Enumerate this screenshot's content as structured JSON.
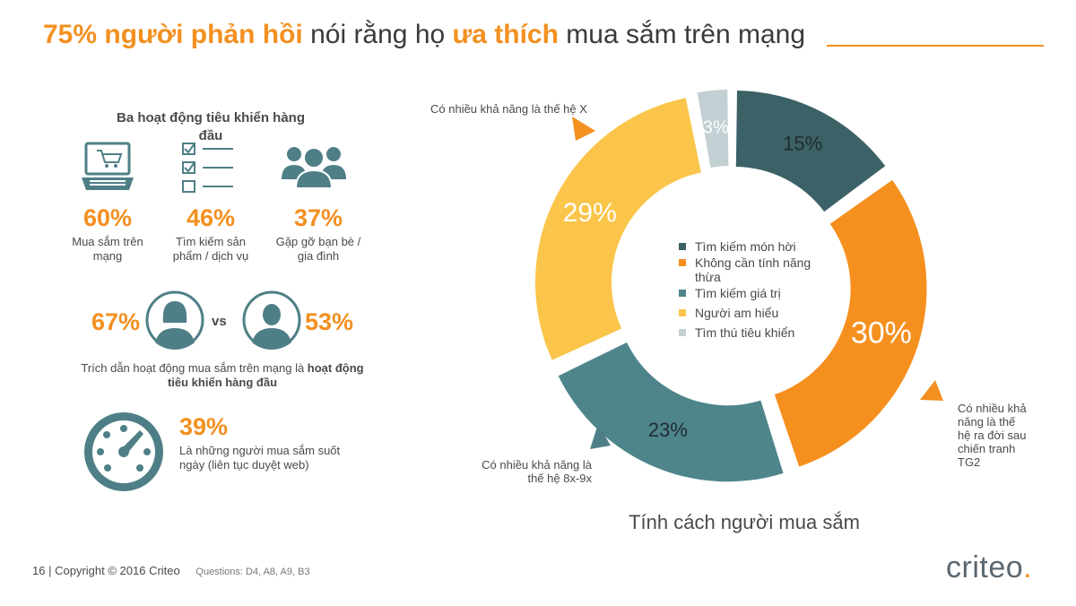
{
  "title": {
    "part1": "75% người phản hồi",
    "part2": " nói rằng họ ",
    "part3": "ưa thích",
    "part4": " mua sắm trên mạng"
  },
  "left_panel": {
    "heading": "Ba hoạt động tiêu khiển hàng đầu",
    "activities": [
      {
        "icon": "laptop-cart-icon",
        "pct": "60%",
        "label": "Mua sắm trên mạng"
      },
      {
        "icon": "checklist-icon",
        "pct": "46%",
        "label": "Tìm kiếm sản phẩm / dịch vụ"
      },
      {
        "icon": "people-group-icon",
        "pct": "37%",
        "label": "Gặp gỡ bạn bè / gia đình"
      }
    ],
    "gender": {
      "female_pct": "67%",
      "vs": "vs",
      "male_pct": "53%"
    },
    "gender_caption_normal": "Trích dẫn hoạt động mua sắm trên mạng là ",
    "gender_caption_bold": "hoạt động tiêu khiển hàng đầu",
    "always_on": {
      "pct": "39%",
      "text": "Là những người mua sắm suốt ngày (liên tục duyệt web)"
    }
  },
  "chart_data": {
    "type": "pie",
    "variant": "donut",
    "title": "Tính cách người mua sắm",
    "slices": [
      {
        "label": "Tìm kiếm món hời",
        "value": 15,
        "value_label": "15%",
        "color": "#3c6166"
      },
      {
        "label": "Không cần tính năng thừa",
        "value": 30,
        "value_label": "30%",
        "color": "#f5901f"
      },
      {
        "label": "Tìm kiếm giá trị",
        "value": 23,
        "value_label": "23%",
        "color": "#4e858b"
      },
      {
        "label": "Người am hiểu",
        "value": 29,
        "value_label": "29%",
        "color": "#fac54a"
      },
      {
        "label": "Tìm thú tiêu khiển",
        "value": 3,
        "value_label": "3%",
        "color": "#c3d0d3"
      }
    ],
    "legend_position": "center",
    "annotations": [
      {
        "text": "Có nhiều khả năng là thế hệ X",
        "target": "Người am hiểu"
      },
      {
        "text": "Có nhiều khả năng là thế hệ ra đời sau chiến tranh TG2",
        "target": "Không cần tính năng thừa"
      },
      {
        "text": "Có nhiều khả năng là thế hệ 8x-9x",
        "target": "Tìm kiếm giá trị"
      }
    ]
  },
  "footer": {
    "page": "16",
    "sep": "|",
    "copyright": "Copyright © 2016 Criteo",
    "questions": "Questions: D4, A8, A9, B3"
  },
  "logo": {
    "text": "criteo",
    "dot": "."
  }
}
